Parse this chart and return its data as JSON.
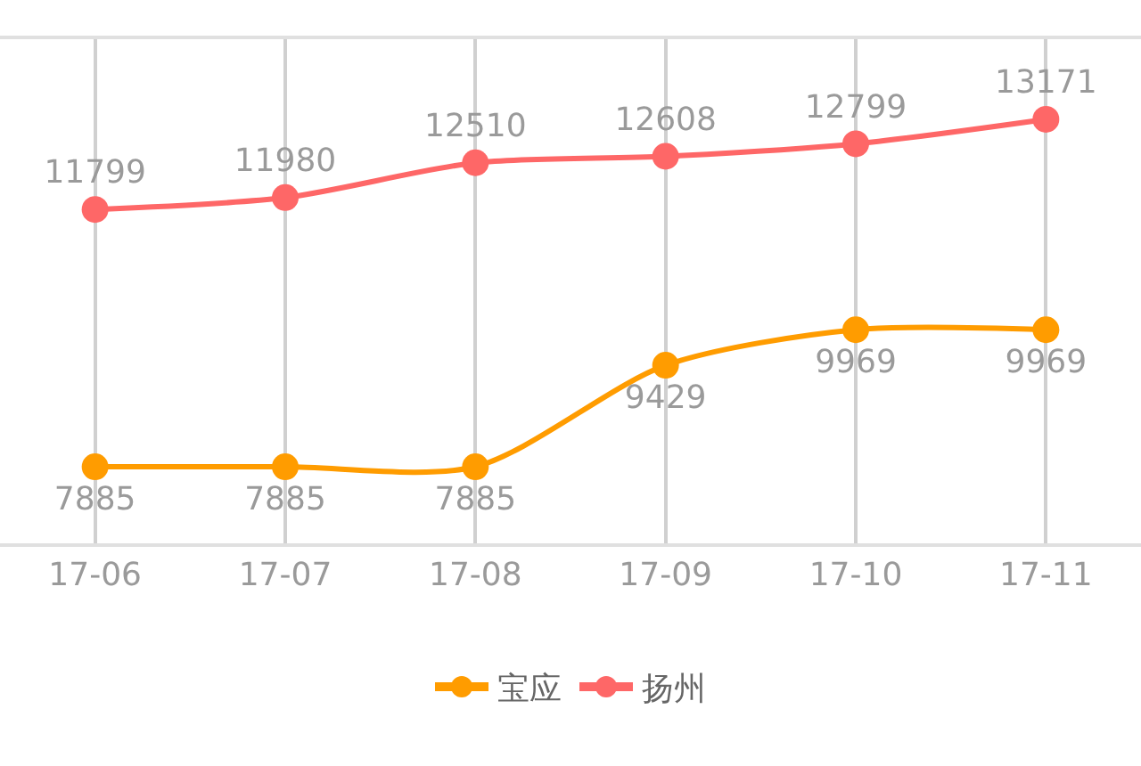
{
  "chart_data": {
    "type": "line",
    "categories": [
      "17-06",
      "17-07",
      "17-08",
      "17-09",
      "17-10",
      "17-11"
    ],
    "series": [
      {
        "name": "宝应",
        "color": "#ff9c00",
        "values": [
          7885,
          7885,
          7885,
          9429,
          9969,
          9969
        ]
      },
      {
        "name": "扬州",
        "color": "#fe6767",
        "values": [
          11799,
          11980,
          12510,
          12608,
          12799,
          13171
        ]
      }
    ],
    "ylim": [
      6720,
      14390
    ],
    "data_labels": true,
    "grid": "x",
    "legend": "bottom",
    "marker": "circle",
    "line_style": "solid",
    "tick_labels": "x"
  }
}
